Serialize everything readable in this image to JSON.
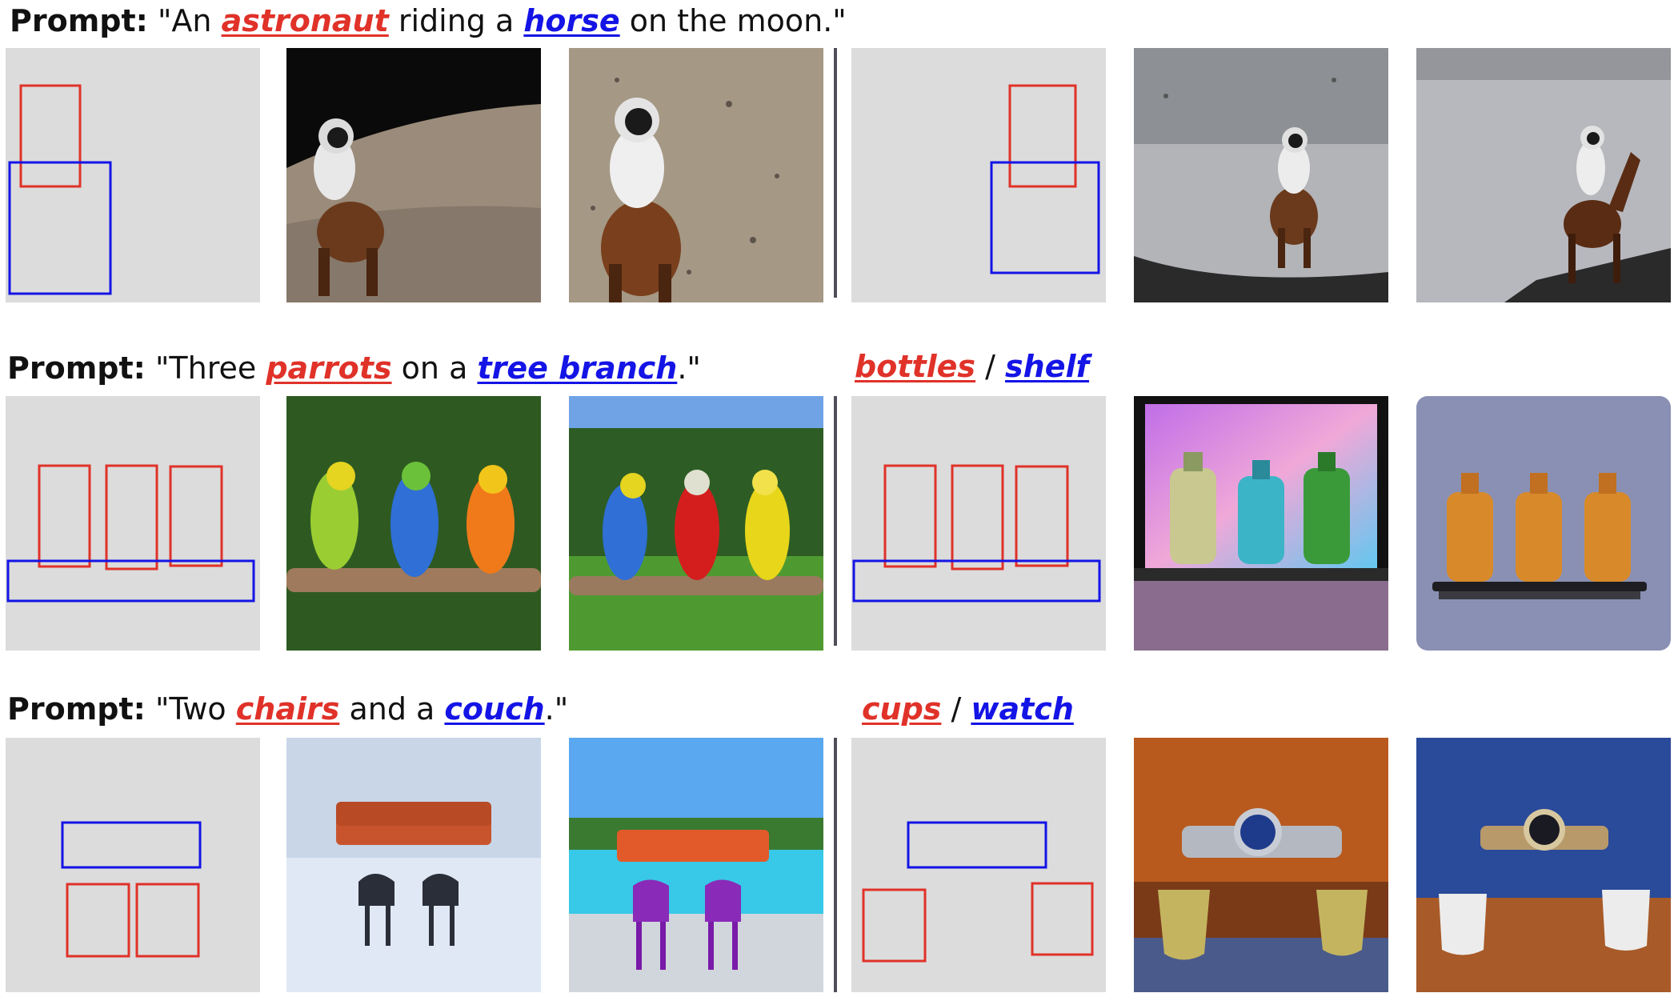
{
  "rows": [
    {
      "label": "Prompt:",
      "quote_open": "\"An ",
      "obj1": "astronaut",
      "middle": " riding a ",
      "obj2": "horse",
      "quote_close": " on the moon.\"",
      "alt": null
    },
    {
      "label": "Prompt:",
      "quote_open": "\"Three ",
      "obj1": "parrots",
      "middle": " on a ",
      "obj2": "tree branch",
      "quote_close": ".\"",
      "alt": {
        "obj1": "bottles",
        "sep": " / ",
        "obj2": "shelf"
      }
    },
    {
      "label": "Prompt:",
      "quote_open": "\"Two ",
      "obj1": "chairs",
      "middle": " and a ",
      "obj2": "couch",
      "quote_close": ".\"",
      "alt": {
        "obj1": "cups",
        "sep": " / ",
        "obj2": "watch"
      }
    }
  ],
  "colors": {
    "red": "#e03229",
    "blue": "#1414e6",
    "layout_bg": "#dcdcdc",
    "divider": "#4f4f5a"
  }
}
